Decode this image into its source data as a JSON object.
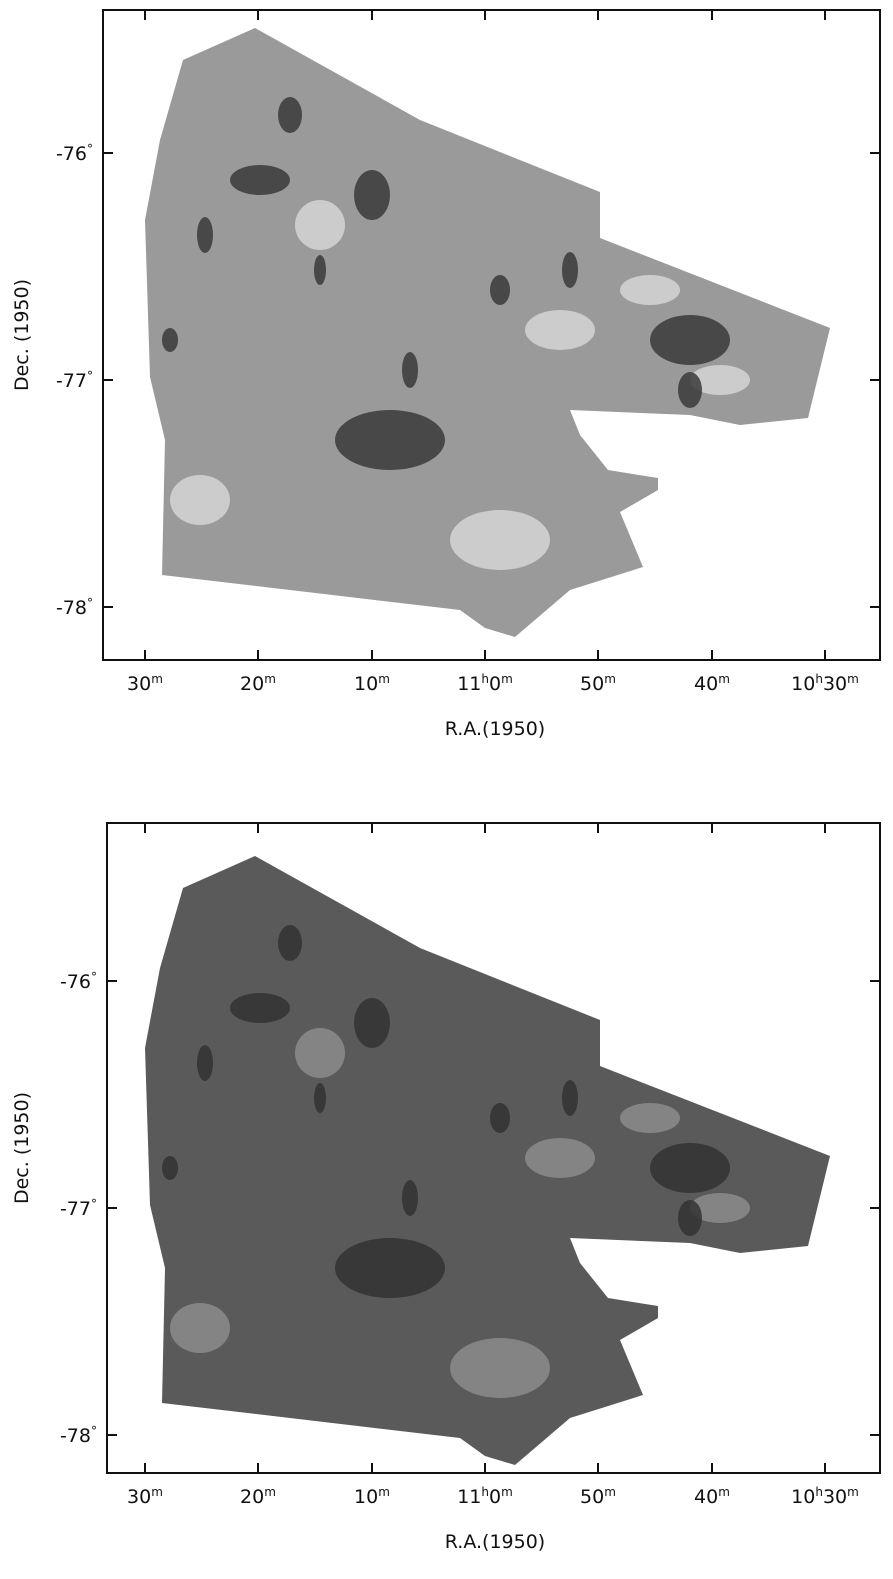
{
  "panels": [
    {
      "ylabel": "Dec. (1950)",
      "xlabel": "R.A.(1950)",
      "xticks": [
        {
          "parts": [
            {
              "main": "30",
              "sup": "m"
            }
          ]
        },
        {
          "parts": [
            {
              "main": "20",
              "sup": "m"
            }
          ]
        },
        {
          "parts": [
            {
              "main": "10",
              "sup": "m"
            }
          ]
        },
        {
          "parts": [
            {
              "main": "11",
              "sup": "h"
            },
            {
              "main": "0",
              "sup": "m"
            }
          ]
        },
        {
          "parts": [
            {
              "main": "50",
              "sup": "m"
            }
          ]
        },
        {
          "parts": [
            {
              "main": "40",
              "sup": "m"
            }
          ]
        },
        {
          "parts": [
            {
              "main": "10",
              "sup": "h"
            },
            {
              "main": "30",
              "sup": "m"
            }
          ]
        }
      ],
      "yticks": [
        {
          "main": "-76",
          "sup": "°"
        },
        {
          "main": "-77",
          "sup": "°"
        },
        {
          "main": "-78",
          "sup": "°"
        }
      ]
    },
    {
      "ylabel": "Dec. (1950)",
      "xlabel": "R.A.(1950)",
      "xticks": [
        {
          "parts": [
            {
              "main": "30",
              "sup": "m"
            }
          ]
        },
        {
          "parts": [
            {
              "main": "20",
              "sup": "m"
            }
          ]
        },
        {
          "parts": [
            {
              "main": "10",
              "sup": "m"
            }
          ]
        },
        {
          "parts": [
            {
              "main": "11",
              "sup": "h"
            },
            {
              "main": "0",
              "sup": "m"
            }
          ]
        },
        {
          "parts": [
            {
              "main": "50",
              "sup": "m"
            }
          ]
        },
        {
          "parts": [
            {
              "main": "40",
              "sup": "m"
            }
          ]
        },
        {
          "parts": [
            {
              "main": "10",
              "sup": "h"
            },
            {
              "main": "30",
              "sup": "m"
            }
          ]
        }
      ],
      "yticks": [
        {
          "main": "-76",
          "sup": "°"
        },
        {
          "main": "-77",
          "sup": "°"
        },
        {
          "main": "-78",
          "sup": "°"
        }
      ]
    }
  ]
}
